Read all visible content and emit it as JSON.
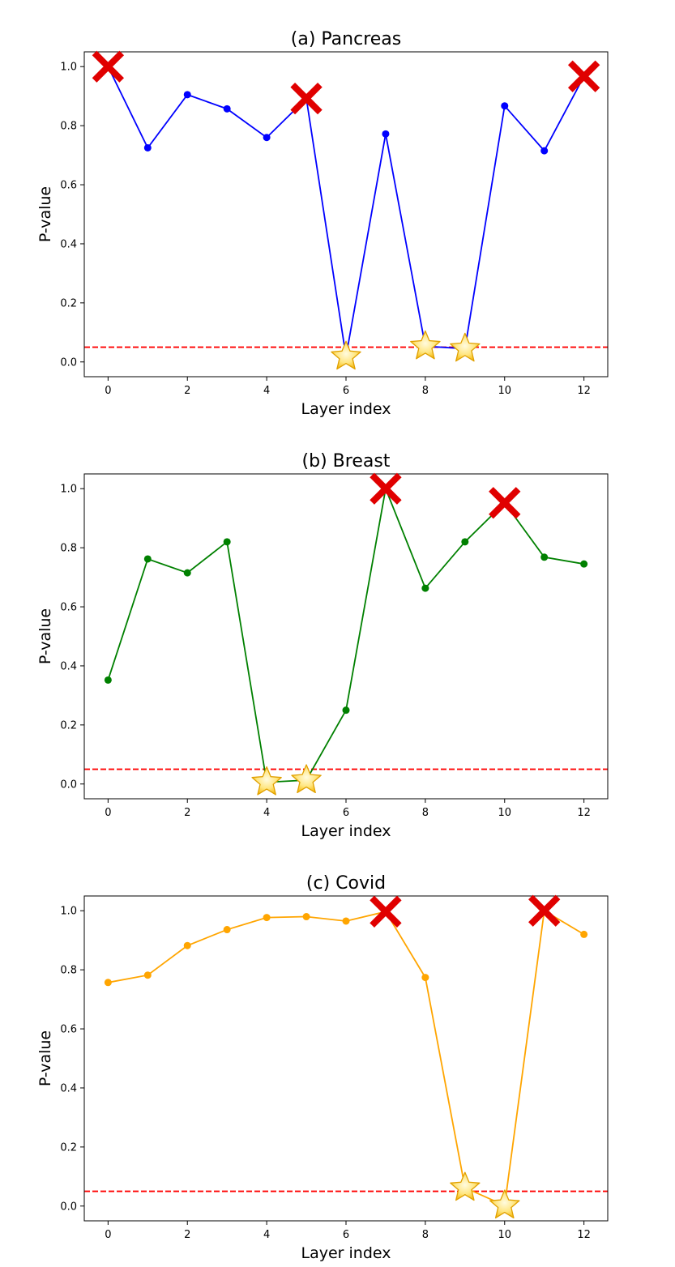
{
  "chart_data": [
    {
      "type": "line",
      "title": "(a) Pancreas",
      "xlabel": "Layer index",
      "ylabel": "P-value",
      "xlim": [
        -0.6,
        12.6
      ],
      "ylim": [
        -0.05,
        1.05
      ],
      "xticks": [
        "0",
        "2",
        "4",
        "6",
        "8",
        "10",
        "12"
      ],
      "yticks": [
        "0.0",
        "0.2",
        "0.4",
        "0.6",
        "0.8",
        "1.0"
      ],
      "grid": false,
      "color": "#0000ff",
      "threshold": {
        "value": 0.05,
        "color": "#ff0000",
        "style": "dashed"
      },
      "x": [
        0,
        1,
        2,
        3,
        4,
        5,
        6,
        7,
        8,
        9,
        10,
        11,
        12
      ],
      "values": [
        1.0,
        0.725,
        0.905,
        0.857,
        0.76,
        0.892,
        0.018,
        0.772,
        0.053,
        0.045,
        0.867,
        0.715,
        0.967
      ],
      "cross_markers": [
        0,
        5,
        12
      ],
      "star_markers": [
        6,
        8,
        9
      ]
    },
    {
      "type": "line",
      "title": "(b) Breast",
      "xlabel": "Layer index",
      "ylabel": "P-value",
      "xlim": [
        -0.6,
        12.6
      ],
      "ylim": [
        -0.05,
        1.05
      ],
      "xticks": [
        "0",
        "2",
        "4",
        "6",
        "8",
        "10",
        "12"
      ],
      "yticks": [
        "0.0",
        "0.2",
        "0.4",
        "0.6",
        "0.8",
        "1.0"
      ],
      "grid": false,
      "color": "#008000",
      "threshold": {
        "value": 0.05,
        "color": "#ff0000",
        "style": "dashed"
      },
      "x": [
        0,
        1,
        2,
        3,
        4,
        5,
        6,
        7,
        8,
        9,
        10,
        11,
        12
      ],
      "values": [
        0.352,
        0.762,
        0.715,
        0.82,
        0.006,
        0.013,
        0.25,
        1.0,
        0.663,
        0.82,
        0.952,
        0.768,
        0.745
      ],
      "cross_markers": [
        7,
        10
      ],
      "star_markers": [
        4,
        5
      ]
    },
    {
      "type": "line",
      "title": "(c) Covid",
      "xlabel": "Layer index",
      "ylabel": "P-value",
      "xlim": [
        -0.6,
        12.6
      ],
      "ylim": [
        -0.05,
        1.05
      ],
      "xticks": [
        "0",
        "2",
        "4",
        "6",
        "8",
        "10",
        "12"
      ],
      "yticks": [
        "0.0",
        "0.2",
        "0.4",
        "0.6",
        "0.8",
        "1.0"
      ],
      "grid": false,
      "color": "#ffa500",
      "threshold": {
        "value": 0.05,
        "color": "#ff0000",
        "style": "dashed"
      },
      "x": [
        0,
        1,
        2,
        3,
        4,
        5,
        6,
        7,
        8,
        9,
        10,
        11,
        12
      ],
      "values": [
        0.757,
        0.782,
        0.882,
        0.936,
        0.977,
        0.98,
        0.965,
        0.997,
        0.774,
        0.062,
        0.002,
        1.0,
        0.92
      ],
      "cross_markers": [
        7,
        11
      ],
      "star_markers": [
        9,
        10
      ]
    }
  ]
}
